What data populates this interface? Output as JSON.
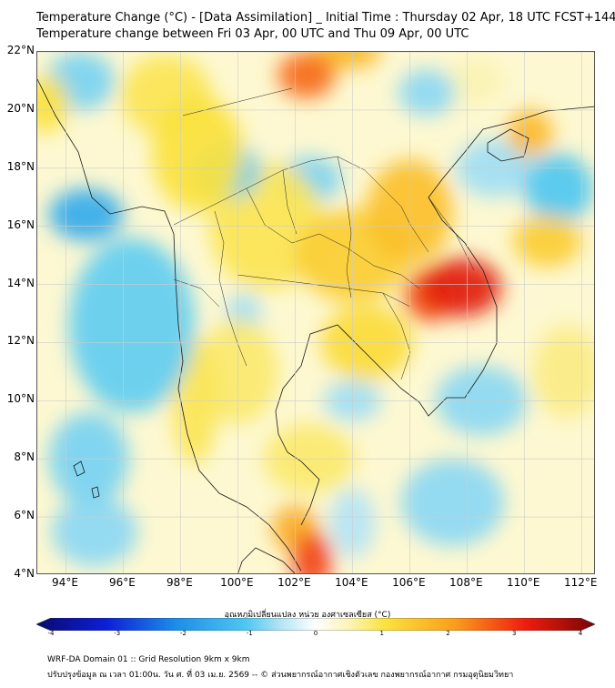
{
  "title_line1": "Temperature Change (°C) - [Data Assimilation] _ Initial Time : Thursday 02 Apr, 18 UTC FCST+144",
  "title_line2": "Temperature change between Fri 03 Apr, 00 UTC and Thu 09 Apr, 00 UTC",
  "map": {
    "lon_range": [
      93,
      112.5
    ],
    "lat_range": [
      4,
      22
    ],
    "lat_ticks": [
      {
        "value": 22,
        "label": "22°N"
      },
      {
        "value": 20,
        "label": "20°N"
      },
      {
        "value": 18,
        "label": "18°N"
      },
      {
        "value": 16,
        "label": "16°N"
      },
      {
        "value": 14,
        "label": "14°N"
      },
      {
        "value": 12,
        "label": "12°N"
      },
      {
        "value": 10,
        "label": "10°N"
      },
      {
        "value": 8,
        "label": "8°N"
      },
      {
        "value": 6,
        "label": "6°N"
      },
      {
        "value": 4,
        "label": "4°N"
      }
    ],
    "lon_ticks": [
      {
        "value": 94,
        "label": "94°E"
      },
      {
        "value": 96,
        "label": "96°E"
      },
      {
        "value": 98,
        "label": "98°E"
      },
      {
        "value": 100,
        "label": "100°E"
      },
      {
        "value": 102,
        "label": "102°E"
      },
      {
        "value": 104,
        "label": "104°E"
      },
      {
        "value": 106,
        "label": "106°E"
      },
      {
        "value": 108,
        "label": "108°E"
      },
      {
        "value": 110,
        "label": "110°E"
      },
      {
        "value": 112,
        "label": "112°E"
      }
    ],
    "gridlines": true,
    "background_change": 0.3,
    "anomalies": [
      {
        "lon": 107.8,
        "lat": 13.9,
        "value": 3.1,
        "rx": 1.4,
        "ry": 1.0
      },
      {
        "lon": 106.7,
        "lat": 13.6,
        "value": 2.6,
        "rx": 0.9,
        "ry": 0.9
      },
      {
        "lon": 102.6,
        "lat": 4.5,
        "value": 2.7,
        "rx": 0.7,
        "ry": 1.0
      },
      {
        "lon": 102.0,
        "lat": 5.6,
        "value": 1.8,
        "rx": 0.8,
        "ry": 0.8
      },
      {
        "lon": 102.4,
        "lat": 21.2,
        "value": 2.4,
        "rx": 1.0,
        "ry": 0.8
      },
      {
        "lon": 103.8,
        "lat": 22.0,
        "value": 1.6,
        "rx": 1.2,
        "ry": 0.6
      },
      {
        "lon": 106.0,
        "lat": 16.5,
        "value": 1.5,
        "rx": 1.5,
        "ry": 1.8
      },
      {
        "lon": 104.0,
        "lat": 15.0,
        "value": 1.3,
        "rx": 2.0,
        "ry": 1.6
      },
      {
        "lon": 101.0,
        "lat": 16.0,
        "value": 0.9,
        "rx": 2.0,
        "ry": 2.2
      },
      {
        "lon": 104.5,
        "lat": 12.0,
        "value": 1.1,
        "rx": 1.6,
        "ry": 1.3
      },
      {
        "lon": 100.0,
        "lat": 11.0,
        "value": 0.8,
        "rx": 1.4,
        "ry": 1.8
      },
      {
        "lon": 98.6,
        "lat": 18.5,
        "value": 1.0,
        "rx": 1.6,
        "ry": 2.0
      },
      {
        "lon": 97.5,
        "lat": 20.5,
        "value": 0.9,
        "rx": 1.6,
        "ry": 1.4
      },
      {
        "lon": 98.5,
        "lat": 10.0,
        "value": 0.9,
        "rx": 0.8,
        "ry": 2.2
      },
      {
        "lon": 102.5,
        "lat": 8.0,
        "value": 0.8,
        "rx": 1.6,
        "ry": 1.2
      },
      {
        "lon": 110.2,
        "lat": 19.2,
        "value": 1.6,
        "rx": 0.8,
        "ry": 0.8
      },
      {
        "lon": 110.8,
        "lat": 15.5,
        "value": 1.3,
        "rx": 1.2,
        "ry": 0.9
      },
      {
        "lon": 93.3,
        "lat": 20.2,
        "value": 1.0,
        "rx": 0.8,
        "ry": 1.0
      },
      {
        "lon": 111.5,
        "lat": 11.0,
        "value": 0.7,
        "rx": 1.2,
        "ry": 1.6
      },
      {
        "lon": 108.3,
        "lat": 21.0,
        "value": 0.5,
        "rx": 1.0,
        "ry": 0.8
      },
      {
        "lon": 99.6,
        "lat": 17.9,
        "value": -0.9,
        "rx": 1.2,
        "ry": 1.0
      },
      {
        "lon": 102.5,
        "lat": 17.6,
        "value": -0.8,
        "rx": 1.1,
        "ry": 0.8
      },
      {
        "lon": 94.7,
        "lat": 16.4,
        "value": -1.5,
        "rx": 1.3,
        "ry": 0.9
      },
      {
        "lon": 96.3,
        "lat": 12.6,
        "value": -0.9,
        "rx": 2.2,
        "ry": 3.0
      },
      {
        "lon": 94.5,
        "lat": 21.0,
        "value": -0.8,
        "rx": 1.2,
        "ry": 1.0
      },
      {
        "lon": 94.8,
        "lat": 8.0,
        "value": -0.8,
        "rx": 1.4,
        "ry": 1.6
      },
      {
        "lon": 95.0,
        "lat": 5.5,
        "value": -0.7,
        "rx": 1.5,
        "ry": 1.2
      },
      {
        "lon": 104.0,
        "lat": 10.0,
        "value": -0.6,
        "rx": 1.0,
        "ry": 0.7
      },
      {
        "lon": 108.5,
        "lat": 10.0,
        "value": -0.7,
        "rx": 1.6,
        "ry": 1.2
      },
      {
        "lon": 107.5,
        "lat": 6.5,
        "value": -0.7,
        "rx": 1.8,
        "ry": 1.5
      },
      {
        "lon": 111.2,
        "lat": 17.3,
        "value": -1.0,
        "rx": 1.2,
        "ry": 1.2
      },
      {
        "lon": 109.0,
        "lat": 18.0,
        "value": -0.6,
        "rx": 1.4,
        "ry": 1.0
      },
      {
        "lon": 106.6,
        "lat": 20.6,
        "value": -0.7,
        "rx": 1.0,
        "ry": 0.8
      },
      {
        "lon": 100.2,
        "lat": 13.0,
        "value": -0.6,
        "rx": 0.6,
        "ry": 0.7
      },
      {
        "lon": 104.0,
        "lat": 5.8,
        "value": -0.5,
        "rx": 0.8,
        "ry": 1.2
      }
    ]
  },
  "colorbar": {
    "label": "อุณหภูมิเปลี่ยนแปลง หน่วย องศาเซลเซียส (°C)",
    "min": -4,
    "max": 4,
    "ticks": [
      {
        "value": -4,
        "label": "-4"
      },
      {
        "value": -3,
        "label": "-3"
      },
      {
        "value": -2,
        "label": "-2"
      },
      {
        "value": -1,
        "label": "-1"
      },
      {
        "value": 0,
        "label": "0"
      },
      {
        "value": 1,
        "label": "1"
      },
      {
        "value": 2,
        "label": "2"
      },
      {
        "value": 3,
        "label": "3"
      },
      {
        "value": 4,
        "label": "4"
      }
    ],
    "colors": {
      "-4": "#0a0a6e",
      "-3": "#0d1fd6",
      "-2": "#1c8ee8",
      "-1": "#4ec7f0",
      "-0.5": "#b4e4f5",
      "0": "#ffffff",
      "0.5": "#fbf3b3",
      "1": "#fbe23d",
      "2": "#fb9d1c",
      "3": "#ee1d0f",
      "4": "#7a0505"
    }
  },
  "footer_line1": "WRF-DA Domain 01 :: Grid Resolution 9km x 9km",
  "footer_line2": "ปรับปรุงข้อมูล ณ เวลา 01:00น. วัน ศ. ที่ 03 เม.ย. 2569 -- © ส่วนพยากรณ์อากาศเชิงตัวเลข กองพยากรณ์อากาศ กรมอุตุนิยมวิทยา"
}
